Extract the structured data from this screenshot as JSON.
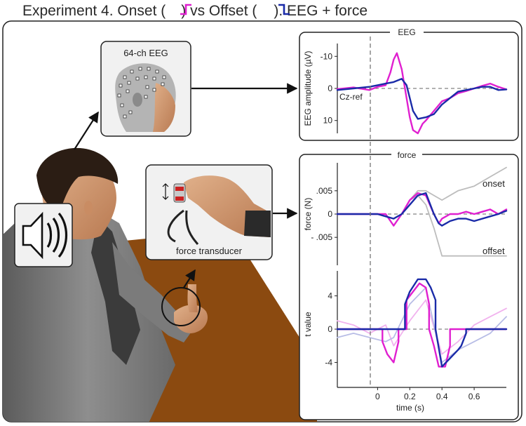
{
  "title": {
    "prefix": "Experiment 4. Onset (",
    "middle": ") vs Offset (",
    "suffix": "). EEG + force",
    "onset_icon": "step-up-icon",
    "offset_icon": "step-down-icon"
  },
  "colors": {
    "onset": "#e020d0",
    "offset": "#1a2ba8",
    "onset_light": "#f1b2ee",
    "offset_light": "#b8bde6",
    "force_gray": "#bdbdbd",
    "table": "#8b4a10",
    "panel_bg": "#f2f2f2"
  },
  "labels": {
    "eeg_box": "64-ch EEG",
    "force_box": "force transducer",
    "speaker_icon": "speaker-sound-icon",
    "head_icon": "eeg-cap-head-icon",
    "hand_icon": "hand-holding-transducer-icon",
    "person_icon": "seated-participant-icon"
  },
  "chart_data": [
    {
      "type": "line",
      "title": "EEG",
      "ylabel": "EEG amplitude (µV)",
      "y_inverted": true,
      "ylim": [
        14,
        -14
      ],
      "xlim": [
        -0.25,
        0.8
      ],
      "yticks": [
        -10,
        0,
        10
      ],
      "ytick_labels": [
        "-10",
        "0",
        "10"
      ],
      "annotation": "Cz-ref",
      "series": [
        {
          "color": "onset",
          "x": [
            -0.25,
            -0.15,
            -0.05,
            0.0,
            0.05,
            0.08,
            0.1,
            0.12,
            0.15,
            0.18,
            0.2,
            0.22,
            0.25,
            0.28,
            0.3,
            0.35,
            0.4,
            0.45,
            0.5,
            0.55,
            0.6,
            0.65,
            0.7,
            0.75,
            0.8
          ],
          "y": [
            0.2,
            -0.3,
            0.5,
            -0.5,
            -1.0,
            -5.0,
            -9.0,
            -11.0,
            -6.0,
            3.0,
            9.0,
            13.0,
            14.0,
            11.0,
            10.0,
            7.0,
            4.0,
            3.0,
            1.5,
            0.8,
            0.0,
            -0.8,
            -1.5,
            -0.5,
            0.3
          ]
        },
        {
          "color": "offset",
          "x": [
            -0.25,
            -0.15,
            -0.05,
            0.0,
            0.05,
            0.1,
            0.15,
            0.18,
            0.2,
            0.22,
            0.25,
            0.3,
            0.35,
            0.4,
            0.45,
            0.5,
            0.55,
            0.6,
            0.65,
            0.7,
            0.75,
            0.8
          ],
          "y": [
            0.5,
            0.0,
            -0.5,
            -1.0,
            -1.5,
            -2.0,
            -3.0,
            -1.0,
            3.0,
            7.0,
            9.5,
            9.0,
            8.0,
            5.0,
            3.0,
            1.0,
            0.5,
            0.0,
            -0.5,
            -0.5,
            0.5,
            0.3
          ]
        }
      ]
    },
    {
      "type": "line",
      "title": "force",
      "ylabel": "force (N)",
      "ylim": [
        -0.011,
        0.011
      ],
      "xlim": [
        -0.25,
        0.8
      ],
      "yticks": [
        0.005,
        0,
        -0.005
      ],
      "ytick_labels": [
        ".005",
        "0",
        "- .005"
      ],
      "annotations": [
        "onset",
        "offset"
      ],
      "series": [
        {
          "color": "force_gray",
          "x": [
            -0.25,
            -0.1,
            0.0,
            0.1,
            0.15,
            0.2,
            0.25,
            0.3,
            0.35,
            0.4,
            0.5,
            0.6,
            0.7,
            0.8
          ],
          "y": [
            0.0,
            0.0,
            0.0,
            -0.001,
            0.0,
            0.003,
            0.005,
            0.005,
            0.004,
            0.003,
            0.005,
            0.006,
            0.008,
            0.01
          ]
        },
        {
          "color": "force_gray",
          "x": [
            -0.25,
            -0.1,
            0.0,
            0.1,
            0.15,
            0.2,
            0.25,
            0.3,
            0.35,
            0.4,
            0.5,
            0.6,
            0.7,
            0.8
          ],
          "y": [
            0.0,
            0.0,
            0.0,
            -0.001,
            0.0,
            0.003,
            0.004,
            0.002,
            -0.003,
            -0.009,
            -0.009,
            -0.009,
            -0.009,
            -0.009
          ]
        },
        {
          "color": "onset",
          "x": [
            -0.25,
            -0.15,
            -0.05,
            0.0,
            0.05,
            0.1,
            0.15,
            0.2,
            0.25,
            0.3,
            0.35,
            0.38,
            0.4,
            0.45,
            0.5,
            0.55,
            0.6,
            0.65,
            0.7,
            0.75,
            0.8
          ],
          "y": [
            0.0,
            0.0,
            0.0,
            0.0,
            0.0,
            -0.0025,
            0.0,
            0.003,
            0.0045,
            0.004,
            0.0,
            -0.002,
            -0.001,
            0.0,
            0.0,
            0.0005,
            0.0,
            0.0005,
            0.001,
            0.0,
            0.001
          ]
        },
        {
          "color": "offset",
          "x": [
            -0.25,
            -0.15,
            -0.05,
            0.0,
            0.05,
            0.1,
            0.15,
            0.2,
            0.25,
            0.3,
            0.35,
            0.38,
            0.4,
            0.45,
            0.5,
            0.55,
            0.6,
            0.65,
            0.7,
            0.75,
            0.8
          ],
          "y": [
            0.0,
            0.0,
            0.0,
            0.0,
            -0.0005,
            -0.001,
            0.0,
            0.002,
            0.004,
            0.0045,
            0.0,
            -0.002,
            -0.0025,
            -0.0015,
            -0.001,
            -0.001,
            -0.0015,
            -0.001,
            -0.0005,
            0.0,
            0.0007
          ]
        }
      ]
    },
    {
      "type": "line",
      "ylabel": "t value",
      "xlabel": "time (s)",
      "ylim": [
        -7,
        7
      ],
      "xlim": [
        -0.25,
        0.8
      ],
      "yticks": [
        4,
        0,
        -4
      ],
      "ytick_labels": [
        "4",
        "0",
        "-4"
      ],
      "xticks": [
        0,
        0.2,
        0.4,
        0.6
      ],
      "xtick_labels": [
        "0",
        "0.2",
        "0.4",
        "0.6"
      ],
      "series": [
        {
          "color": "onset_light",
          "x": [
            -0.25,
            -0.15,
            -0.05,
            0.05,
            0.1,
            0.2,
            0.3,
            0.4,
            0.5,
            0.6,
            0.7,
            0.8
          ],
          "y": [
            1.0,
            0.5,
            -0.5,
            0.5,
            -2.0,
            1.0,
            3.5,
            -3.0,
            -1.5,
            0.5,
            1.5,
            2.5
          ]
        },
        {
          "color": "offset_light",
          "x": [
            -0.25,
            -0.15,
            -0.05,
            0.05,
            0.1,
            0.2,
            0.3,
            0.4,
            0.5,
            0.6,
            0.7,
            0.8
          ],
          "y": [
            -1.0,
            -0.5,
            -1.0,
            -1.5,
            -1.0,
            3.0,
            5.0,
            -4.0,
            -2.5,
            -1.5,
            -0.5,
            1.5
          ]
        },
        {
          "color": "onset",
          "x": [
            -0.25,
            0.03,
            0.03,
            0.06,
            0.1,
            0.13,
            0.13,
            0.18,
            0.18,
            0.22,
            0.26,
            0.3,
            0.32,
            0.32,
            0.35,
            0.38,
            0.42,
            0.45,
            0.45,
            0.8
          ],
          "y": [
            0,
            0,
            -1.5,
            -3.0,
            -4.0,
            -1.5,
            0,
            0,
            3.5,
            4.5,
            5.5,
            5.0,
            3.0,
            0,
            -2.0,
            -4.5,
            -4.5,
            -2.0,
            0,
            0
          ]
        },
        {
          "color": "offset",
          "x": [
            -0.25,
            0.17,
            0.17,
            0.2,
            0.25,
            0.3,
            0.33,
            0.36,
            0.36,
            0.4,
            0.45,
            0.5,
            0.52,
            0.55,
            0.55,
            0.8
          ],
          "y": [
            0,
            0,
            3.0,
            4.5,
            6.0,
            6.0,
            5.0,
            3.5,
            0,
            -4.5,
            -3.5,
            -2.5,
            -2.0,
            -0.5,
            0,
            0
          ]
        }
      ]
    }
  ]
}
